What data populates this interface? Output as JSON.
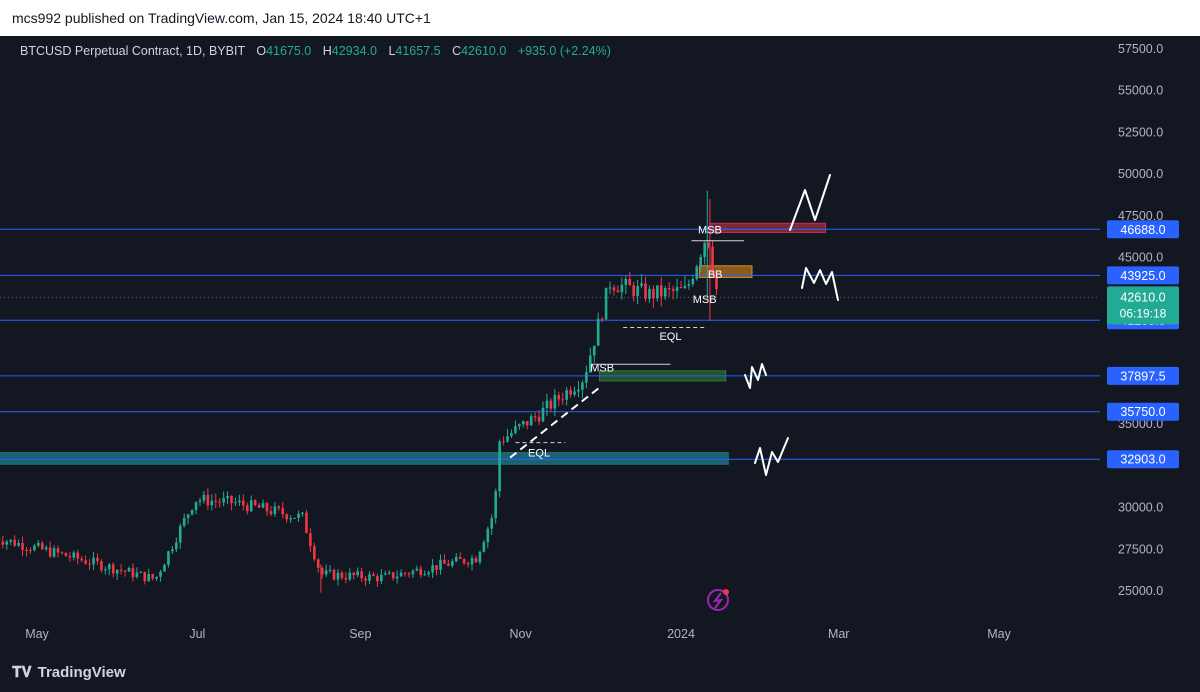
{
  "header": {
    "publish_text": "mcs992 published on TradingView.com, Jan 15, 2024 18:40 UTC+1"
  },
  "legend": {
    "symbol": "BTCUSD Perpetual Contract, 1D, BYBIT",
    "open_label": "O",
    "open": "41675.0",
    "high_label": "H",
    "high": "42934.0",
    "low_label": "L",
    "low": "41657.5",
    "close_label": "C",
    "close": "42610.0",
    "change": "+935.0 (+2.24%)"
  },
  "colors": {
    "up": "#22ab94",
    "down": "#f23645",
    "hline": "#2962ff",
    "tag": "#2962ff",
    "price_tag": "#22ab94",
    "zone_teal": "#1f6f7f"
  },
  "chart_data": {
    "type": "candlestick",
    "title": "",
    "x_tick_labels": [
      "May",
      "Jul",
      "Sep",
      "Nov",
      "2024",
      "Mar",
      "May"
    ],
    "y_tick_labels": [
      "57500.0",
      "55000.0",
      "52500.0",
      "50000.0",
      "47500.0",
      "45000.0",
      "35000.0",
      "30000.0",
      "27500.0",
      "25000.0"
    ],
    "y_ticks": [
      57500,
      55000,
      52500,
      50000,
      47500,
      45000,
      35000,
      30000,
      27500,
      25000
    ],
    "ylim": [
      23500,
      58500
    ],
    "horizontal_levels": [
      {
        "value": 46688,
        "label": "46688.0"
      },
      {
        "value": 43925,
        "label": "43925.0"
      },
      {
        "value": 41235,
        "label": "41235.0"
      },
      {
        "value": 37897.5,
        "label": "37897.5"
      },
      {
        "value": 35750,
        "label": "35750.0"
      },
      {
        "value": 32903,
        "label": "32903.0"
      }
    ],
    "current_price": {
      "value": 42610,
      "label": "42610.0",
      "countdown": "06:19:18"
    },
    "anchor_points": [
      {
        "date": "2023-04-15",
        "price": 28200
      },
      {
        "date": "2023-05-15",
        "price": 27000
      },
      {
        "date": "2023-06-15",
        "price": 25700
      },
      {
        "date": "2023-06-30",
        "price": 30500
      },
      {
        "date": "2023-07-15",
        "price": 30300
      },
      {
        "date": "2023-08-10",
        "price": 29400
      },
      {
        "date": "2023-08-17",
        "price": 26000
      },
      {
        "date": "2023-09-10",
        "price": 25800
      },
      {
        "date": "2023-10-15",
        "price": 27000
      },
      {
        "date": "2023-10-22",
        "price": 29800
      },
      {
        "date": "2023-10-24",
        "price": 34000
      },
      {
        "date": "2023-11-08",
        "price": 35600
      },
      {
        "date": "2023-11-25",
        "price": 37800
      },
      {
        "date": "2023-12-05",
        "price": 43500
      },
      {
        "date": "2023-12-20",
        "price": 42800
      },
      {
        "date": "2024-01-03",
        "price": 43000
      },
      {
        "date": "2024-01-11",
        "price": 46500
      },
      {
        "date": "2024-01-15",
        "price": 42610
      }
    ],
    "annotations": [
      {
        "text": "MSB",
        "date": "2024-01-12",
        "price": 46688
      },
      {
        "text": "BB",
        "date": "2024-01-14",
        "price": 44000
      },
      {
        "text": "MSB",
        "date": "2024-01-10",
        "price": 42500
      },
      {
        "text": "EQL",
        "date": "2023-12-28",
        "price": 40300
      },
      {
        "text": "MSB",
        "date": "2023-12-02",
        "price": 38400
      },
      {
        "text": "EQL",
        "date": "2023-11-08",
        "price": 33300
      }
    ],
    "zones": [
      {
        "color": "#c2334b",
        "date_from": "2024-01-12",
        "date_to": "2024-02-25",
        "price_from": 46500,
        "price_to": 47050
      },
      {
        "color": "#d98b1c",
        "date_from": "2024-01-08",
        "date_to": "2024-01-28",
        "price_from": 43800,
        "price_to": 44500
      },
      {
        "color": "#2e7d32",
        "date_from": "2023-12-01",
        "date_to": "2024-01-18",
        "price_from": 37600,
        "price_to": 38200
      },
      {
        "color": "#1f6f7f",
        "date_from": "2023-03-22",
        "date_to": "2024-01-19",
        "price_from": 32600,
        "price_to": 33300
      }
    ]
  },
  "footer": {
    "brand": "TradingView",
    "logo": "tv-logo-icon"
  }
}
